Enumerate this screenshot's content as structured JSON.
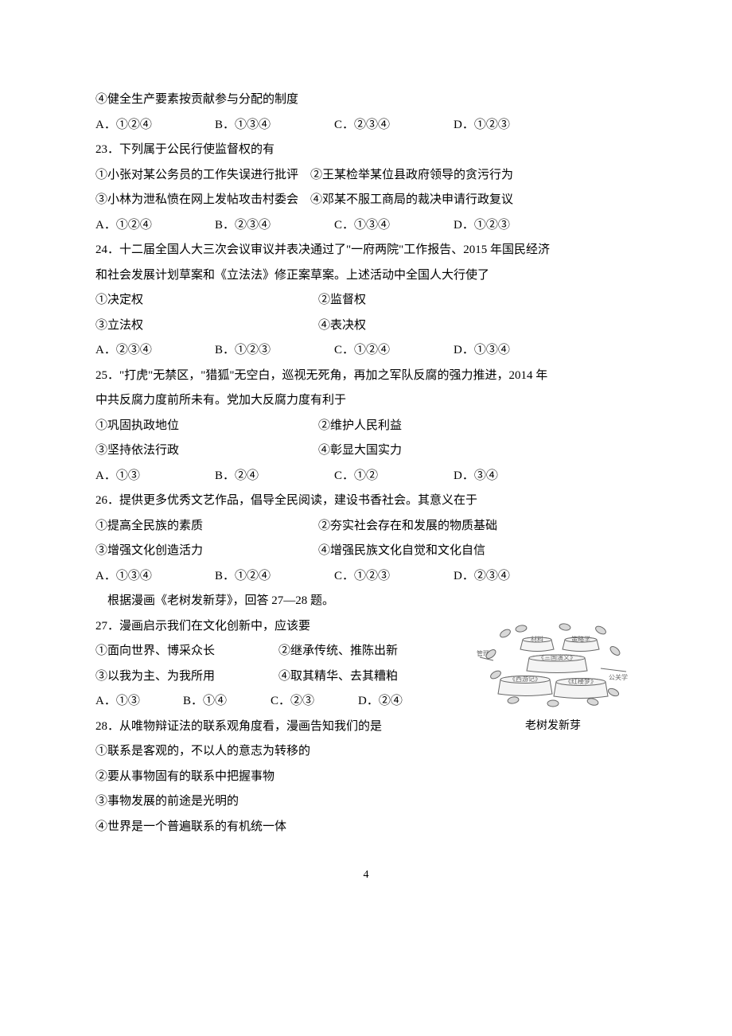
{
  "q22": {
    "item4": "④健全生产要素按贡献参与分配的制度",
    "optA": "A．①②④",
    "optB": "B．①③④",
    "optC": "C．②③④",
    "optD": "D．①②③"
  },
  "q23": {
    "stem": "23．下列属于公民行使监督权的有",
    "line1": "①小张对某公务员的工作失误进行批评　②王某检举某位县政府领导的贪污行为",
    "line2": "③小林为泄私愤在网上发帖攻击村委会　④邓某不服工商局的裁决申请行政复议",
    "optA": "A．①②④",
    "optB": "B．②③④",
    "optC": "C．①③④",
    "optD": "D．①②③"
  },
  "q24": {
    "stem1": "24．十二届全国人大三次会议审议并表决通过了\"一府两院\"工作报告、2015 年国民经济",
    "stem2": "和社会发展计划草案和《立法法》修正案草案。上述活动中全国人大行使了",
    "c1": "①决定权",
    "c2": "②监督权",
    "c3": "③立法权",
    "c4": "④表决权",
    "optA": "A．②③④",
    "optB": "B．①②③",
    "optC": "C．①②④",
    "optD": "D．①③④"
  },
  "q25": {
    "stem1": "25．\"打虎\"无禁区，\"猎狐\"无空白，巡视无死角，再加之军队反腐的强力推进，2014 年",
    "stem2": "中共反腐力度前所未有。党加大反腐力度有利于",
    "c1": "①巩固执政地位",
    "c2": "②维护人民利益",
    "c3": "③坚持依法行政",
    "c4": "④彰显大国实力",
    "optA": "A．①③",
    "optB": "B．②④",
    "optC": "C．①②",
    "optD": "D．③④"
  },
  "q26": {
    "stem": "26．提供更多优秀文艺作品，倡导全民阅读，建设书香社会。其意义在于",
    "c1": "①提高全民族的素质",
    "c2": "②夯实社会存在和发展的物质基础",
    "c3": "③增强文化创造活力",
    "c4": "④增强民族文化自觉和文化自信",
    "optA": "A．①③④",
    "optB": "B．①②④",
    "optC": "C．①②③",
    "optD": "D．②③④"
  },
  "context": "　根据漫画《老树发新芽》，回答 27—28 题。",
  "q27": {
    "stem": "27．漫画启示我们在文化创新中，应该要",
    "c1": "①面向世界、博采众长",
    "c2": "②继承传统、推陈出新",
    "c3": "③以我为主、为我所用",
    "c4": "④取其精华、去其糟粕",
    "optA": "A．①③",
    "optB": "B．①④",
    "optC": "C．②③",
    "optD": "D．②④"
  },
  "q28": {
    "stem": "28．从唯物辩证法的联系观角度看，漫画告知我们的是",
    "c1": "①联系是客观的，不以人的意志为转移的",
    "c2": "②要从事物固有的联系中把握事物",
    "c3": "③事物发展的前途是光明的",
    "c4": "④世界是一个普遍联系的有机统一体"
  },
  "cartoon": {
    "caption": "老树发新芽",
    "labels": {
      "topLeft": "材料",
      "topRight": "策略学",
      "left": "管理学",
      "mid": "《三国演义》",
      "right": "公关学",
      "bottomLeft": "《西游记》",
      "bottomRight": "《红楼梦》"
    },
    "colors": {
      "stroke": "#686868",
      "fill": "#f4f4f4",
      "leafFill": "#d8d8d8"
    }
  },
  "pageNumber": "4"
}
